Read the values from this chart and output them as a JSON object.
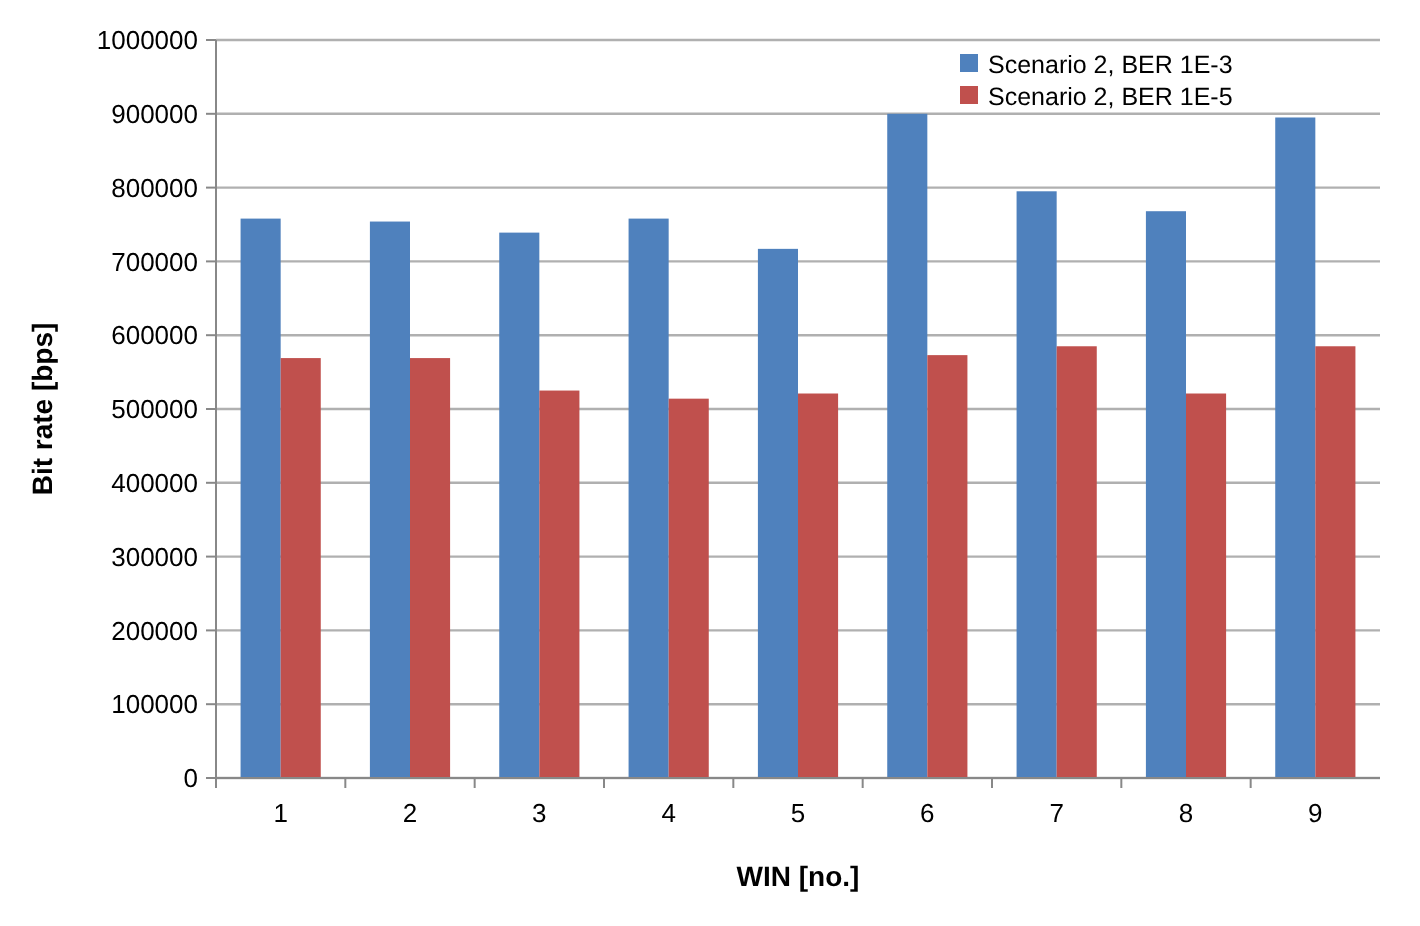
{
  "chart_data": {
    "type": "bar",
    "xlabel": "WIN [no.]",
    "ylabel": "Bit rate [bps]",
    "categories": [
      "1",
      "2",
      "3",
      "4",
      "5",
      "6",
      "7",
      "8",
      "9"
    ],
    "series": [
      {
        "name": "Scenario 2, BER 1E-3",
        "color": "#4f81bd",
        "values": [
          758000,
          754000,
          739000,
          758000,
          717000,
          900000,
          795000,
          768000,
          895000
        ]
      },
      {
        "name": "Scenario 2, BER 1E-5",
        "color": "#c0504d",
        "values": [
          569000,
          569000,
          525000,
          514000,
          521000,
          573000,
          585000,
          521000,
          585000
        ]
      }
    ],
    "ylim": [
      0,
      1000000
    ],
    "yticks": [
      0,
      100000,
      200000,
      300000,
      400000,
      500000,
      600000,
      700000,
      800000,
      900000,
      1000000
    ],
    "grid": "y",
    "legend": "top right"
  }
}
